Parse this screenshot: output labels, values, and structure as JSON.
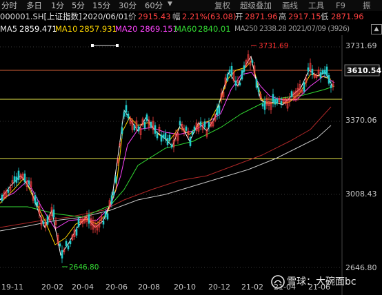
{
  "toolbar": {
    "items": [
      "分时",
      "多日",
      "1分",
      "5分",
      "15分",
      "30分",
      "60分"
    ],
    "right_items": [
      "复权",
      "超级叠加",
      "画线",
      "工具",
      "F9",
      "振"
    ]
  },
  "quote": {
    "code": "000001.SH[上证指数]",
    "date": "2020/06/01",
    "price_label": "价",
    "price": "2915.43",
    "change_label": "幅",
    "change": "2.21%(63.08)",
    "open_label": "开",
    "open": "2871.96",
    "high_label": "高",
    "high": "2917.15",
    "low_label": "低",
    "low": "2871.96"
  },
  "ma": {
    "ma5_label": "MA5",
    "ma5": "2859.471",
    "ma10_label": "MA10",
    "ma10": "2857.931",
    "ma20_label": "MA20",
    "ma20": "2869.151",
    "ma60_label": "MA60",
    "ma60": "2840.01",
    "overlap_text": "MA250 2338.28 2021/07/09 (3926)"
  },
  "chart": {
    "price_axis": [
      "3731.69",
      "3370.06",
      "3008.43",
      "2646.80"
    ],
    "current_price": "3610.54",
    "max_label": "3731.69",
    "min_label": "2646.80",
    "x_axis": [
      "19-11",
      "20-02",
      "20-04",
      "20-06",
      "20-08",
      "20-10",
      "20-12",
      "21-02",
      "21-04",
      "21-06"
    ],
    "colors": {
      "ma5": "#ffffff",
      "ma10": "#ffd700",
      "ma20": "#ff44ff",
      "ma60": "#33dd33",
      "up": "#ff4040",
      "down": "#22cccc",
      "yellow_line": "#e8e84a",
      "max_red": "#ff3030"
    }
  },
  "watermark": {
    "text": "雪球：大碗面bc"
  }
}
